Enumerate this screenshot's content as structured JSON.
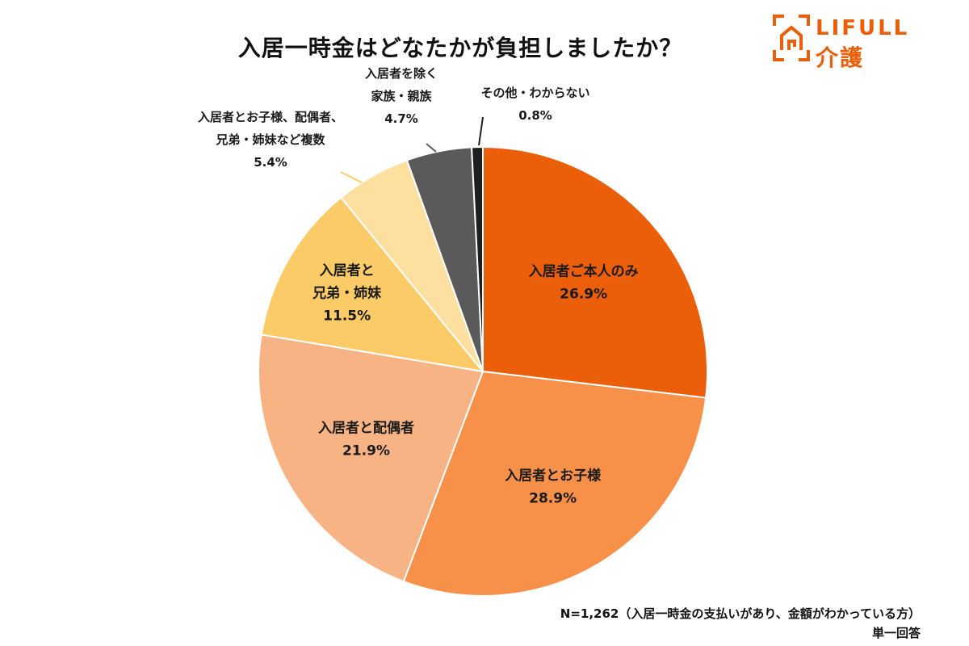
{
  "title": "入居一時金はどなたかが負担しましたか？",
  "logo": {
    "brand": "LIFULL",
    "service": "介護",
    "color": "#EB5E0A"
  },
  "footnote": {
    "sample": "N=1,262（入居一時金の支払いがあり、金額がわかっている方）",
    "answer_type": "単一回答"
  },
  "chart_data": {
    "type": "pie",
    "title": "入居一時金はどなたかが負担しましたか？",
    "start": "12 o'clock",
    "direction": "clockwise",
    "slices": [
      {
        "label": [
          "入居者ご本人のみ"
        ],
        "value": 26.9,
        "value_label": "26.9%",
        "color": "#EB5E0A",
        "label_color": "#1a1a1a"
      },
      {
        "label": [
          "入居者とお子様"
        ],
        "value": 28.9,
        "value_label": "28.9%",
        "color": "#F7914A",
        "label_color": "#1a1a1a"
      },
      {
        "label": [
          "入居者と配偶者"
        ],
        "value": 21.9,
        "value_label": "21.9%",
        "color": "#F8B384",
        "label_color": "#1a1a1a"
      },
      {
        "label": [
          "入居者と",
          "兄弟・姉妹"
        ],
        "value": 11.5,
        "value_label": "11.5%",
        "color": "#FBCB67",
        "label_color": "#1a1a1a"
      },
      {
        "label": [
          "入居者とお子様、配偶者、",
          "兄弟・姉妹など複数"
        ],
        "value": 5.4,
        "value_label": "5.4%",
        "color": "#FDDFA0",
        "label_color": "#1a1a1a",
        "leader_color": "#FBCB67"
      },
      {
        "label": [
          "入居者を除く",
          "家族・親族"
        ],
        "value": 4.7,
        "value_label": "4.7%",
        "color": "#5A5A5A",
        "label_color": "#1a1a1a",
        "leader_color": "#5A5A5A"
      },
      {
        "label": [
          "その他・わからない"
        ],
        "value": 0.8,
        "value_label": "0.8%",
        "color": "#1E1E1E",
        "label_color": "#1a1a1a",
        "leader_color": "#1E1E1E"
      }
    ]
  }
}
